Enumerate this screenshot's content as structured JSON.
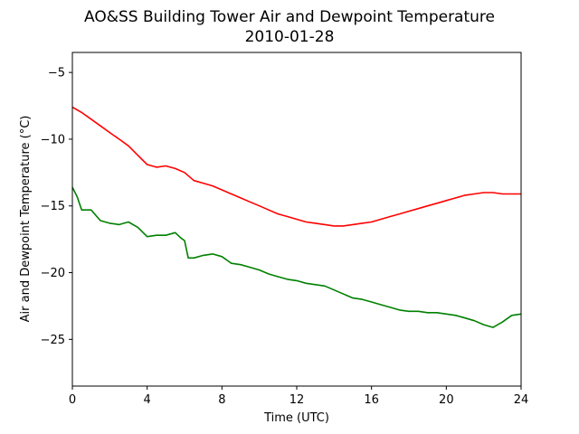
{
  "chart_data": {
    "type": "line",
    "title": "AO&SS Building Tower Air and Dewpoint Temperature",
    "subtitle": "2010-01-28",
    "xlabel": "Time (UTC)",
    "ylabel": "Air and Dewpoint Temperature (°C)",
    "xlim": [
      0,
      24
    ],
    "ylim": [
      -28.5,
      -3.5
    ],
    "xticks": [
      0,
      4,
      8,
      12,
      16,
      20,
      24
    ],
    "xtick_labels": [
      "0",
      "4",
      "8",
      "12",
      "16",
      "20",
      "24"
    ],
    "yticks": [
      -5,
      -10,
      -15,
      -20,
      -25
    ],
    "ytick_labels": [
      "−5",
      "−10",
      "−15",
      "−20",
      "−25"
    ],
    "grid": false,
    "series": [
      {
        "color": "#ff0000",
        "x": [
          0,
          0.5,
          1,
          1.5,
          2,
          2.5,
          3,
          3.5,
          4,
          4.5,
          5,
          5.5,
          6,
          6.5,
          7,
          7.5,
          8,
          8.5,
          9,
          9.5,
          10,
          10.5,
          11,
          11.5,
          12,
          12.5,
          13,
          13.5,
          14,
          14.5,
          15,
          15.5,
          16,
          16.5,
          17,
          17.5,
          18,
          18.5,
          19,
          19.5,
          20,
          20.5,
          21,
          21.5,
          22,
          22.5,
          23,
          23.5,
          24
        ],
        "y": [
          -7.6,
          -8.0,
          -8.5,
          -9.0,
          -9.5,
          -10.0,
          -10.5,
          -11.2,
          -11.9,
          -12.1,
          -12.0,
          -12.2,
          -12.5,
          -13.1,
          -13.3,
          -13.5,
          -13.8,
          -14.1,
          -14.4,
          -14.7,
          -15.0,
          -15.3,
          -15.6,
          -15.8,
          -16.0,
          -16.2,
          -16.3,
          -16.4,
          -16.5,
          -16.5,
          -16.4,
          -16.3,
          -16.2,
          -16.0,
          -15.8,
          -15.6,
          -15.4,
          -15.2,
          -15.0,
          -14.8,
          -14.6,
          -14.4,
          -14.2,
          -14.1,
          -14.0,
          -14.0,
          -14.1,
          -14.1,
          -14.1
        ]
      },
      {
        "color": "#008000",
        "x": [
          0,
          0.25,
          0.5,
          1,
          1.5,
          2,
          2.5,
          3,
          3.5,
          4,
          4.5,
          5,
          5.5,
          5.8,
          6,
          6.2,
          6.5,
          7,
          7.5,
          8,
          8.5,
          9,
          9.5,
          10,
          10.5,
          11,
          11.5,
          12,
          12.5,
          13,
          13.5,
          14,
          14.5,
          15,
          15.5,
          16,
          16.5,
          17,
          17.5,
          18,
          18.5,
          19,
          19.5,
          20,
          20.5,
          21,
          21.5,
          22,
          22.5,
          23,
          23.5,
          24
        ],
        "y": [
          -13.6,
          -14.3,
          -15.3,
          -15.3,
          -16.1,
          -16.3,
          -16.4,
          -16.2,
          -16.6,
          -17.3,
          -17.2,
          -17.2,
          -17.0,
          -17.4,
          -17.6,
          -18.9,
          -18.9,
          -18.7,
          -18.6,
          -18.8,
          -19.3,
          -19.4,
          -19.6,
          -19.8,
          -20.1,
          -20.3,
          -20.5,
          -20.6,
          -20.8,
          -20.9,
          -21.0,
          -21.3,
          -21.6,
          -21.9,
          -22.0,
          -22.2,
          -22.4,
          -22.6,
          -22.8,
          -22.9,
          -22.9,
          -23.0,
          -23.0,
          -23.1,
          -23.2,
          -23.4,
          -23.6,
          -23.9,
          -24.1,
          -23.7,
          -23.2,
          -23.1
        ]
      }
    ]
  }
}
